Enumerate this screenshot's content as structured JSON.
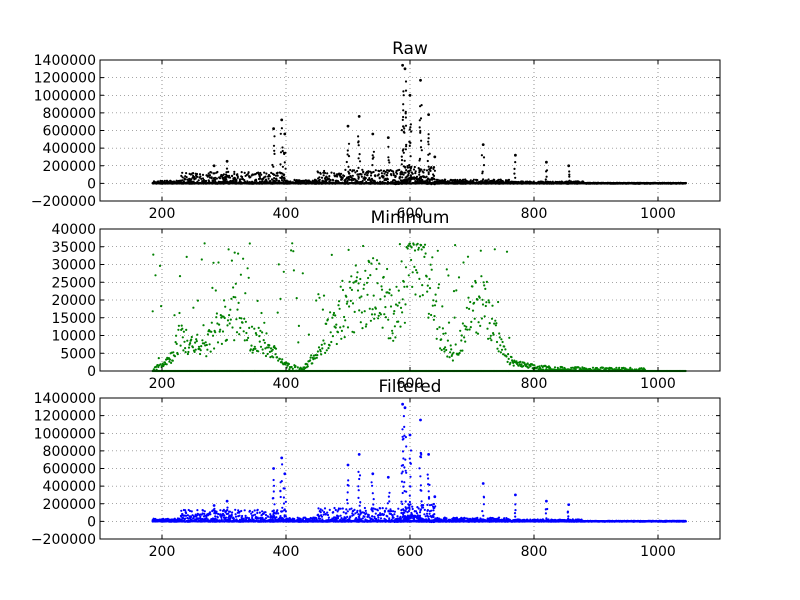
{
  "chart_data": [
    {
      "type": "scatter",
      "title": "Raw",
      "color": "#000000",
      "xlim": [
        100,
        1100
      ],
      "ylim": [
        -200000,
        1400000
      ],
      "xticks": [
        200,
        400,
        600,
        800,
        1000
      ],
      "yticks": [
        -200000,
        0,
        200000,
        400000,
        600000,
        800000,
        1000000,
        1200000,
        1400000
      ],
      "xtick_labels": [
        "200",
        "400",
        "600",
        "800",
        "1000"
      ],
      "ytick_labels": [
        "−200000",
        "0",
        "200000",
        "400000",
        "600000",
        "800000",
        "1000000",
        "1200000",
        "1400000"
      ],
      "grid": true,
      "x_data_range": [
        185,
        1045
      ],
      "peaks": [
        {
          "x": 284,
          "y": 200000
        },
        {
          "x": 305,
          "y": 250000
        },
        {
          "x": 380,
          "y": 620000
        },
        {
          "x": 393,
          "y": 720000
        },
        {
          "x": 398,
          "y": 560000
        },
        {
          "x": 500,
          "y": 650000
        },
        {
          "x": 518,
          "y": 760000
        },
        {
          "x": 540,
          "y": 560000
        },
        {
          "x": 565,
          "y": 520000
        },
        {
          "x": 588,
          "y": 1340000
        },
        {
          "x": 592,
          "y": 1300000
        },
        {
          "x": 600,
          "y": 1000000
        },
        {
          "x": 617,
          "y": 1170000
        },
        {
          "x": 630,
          "y": 780000
        },
        {
          "x": 640,
          "y": 300000
        },
        {
          "x": 718,
          "y": 440000
        },
        {
          "x": 770,
          "y": 320000
        },
        {
          "x": 820,
          "y": 240000
        },
        {
          "x": 856,
          "y": 200000
        }
      ]
    },
    {
      "type": "scatter",
      "title": "Minimum",
      "color": "#008000",
      "xlim": [
        100,
        1100
      ],
      "ylim": [
        0,
        40000
      ],
      "xticks": [
        200,
        400,
        600,
        800,
        1000
      ],
      "yticks": [
        0,
        5000,
        10000,
        15000,
        20000,
        25000,
        30000,
        35000,
        40000
      ],
      "xtick_labels": [
        "200",
        "400",
        "600",
        "800",
        "1000"
      ],
      "ytick_labels": [
        "0",
        "5000",
        "10000",
        "15000",
        "20000",
        "25000",
        "30000",
        "35000",
        "40000"
      ],
      "grid": true,
      "x_data_range": [
        185,
        1045
      ],
      "y_cap": 36000,
      "trend": [
        [
          185,
          0
        ],
        [
          200,
          2000
        ],
        [
          215,
          4000
        ],
        [
          230,
          10000
        ],
        [
          245,
          7000
        ],
        [
          260,
          6000
        ],
        [
          275,
          8000
        ],
        [
          290,
          12000
        ],
        [
          305,
          14000
        ],
        [
          320,
          15000
        ],
        [
          335,
          10000
        ],
        [
          350,
          9000
        ],
        [
          365,
          8000
        ],
        [
          380,
          6000
        ],
        [
          395,
          2000
        ],
        [
          410,
          1000
        ],
        [
          425,
          500
        ],
        [
          440,
          3000
        ],
        [
          455,
          5000
        ],
        [
          470,
          12000
        ],
        [
          485,
          14000
        ],
        [
          500,
          18000
        ],
        [
          515,
          20000
        ],
        [
          530,
          22000
        ],
        [
          545,
          24000
        ],
        [
          560,
          18000
        ],
        [
          575,
          14000
        ],
        [
          590,
          22000
        ],
        [
          600,
          36000
        ],
        [
          610,
          36000
        ],
        [
          625,
          28000
        ],
        [
          640,
          16000
        ],
        [
          655,
          8000
        ],
        [
          670,
          5000
        ],
        [
          685,
          10000
        ],
        [
          700,
          17000
        ],
        [
          715,
          20000
        ],
        [
          730,
          15000
        ],
        [
          745,
          7000
        ],
        [
          760,
          3000
        ],
        [
          775,
          2000
        ],
        [
          800,
          1000
        ],
        [
          830,
          500
        ],
        [
          870,
          300
        ],
        [
          950,
          100
        ],
        [
          1045,
          0
        ]
      ]
    },
    {
      "type": "scatter",
      "title": "Filtered",
      "color": "#0000ff",
      "xlim": [
        100,
        1100
      ],
      "ylim": [
        -200000,
        1400000
      ],
      "xticks": [
        200,
        400,
        600,
        800,
        1000
      ],
      "yticks": [
        -200000,
        0,
        200000,
        400000,
        600000,
        800000,
        1000000,
        1200000,
        1400000
      ],
      "xtick_labels": [
        "200",
        "400",
        "600",
        "800",
        "1000"
      ],
      "ytick_labels": [
        "−200000",
        "0",
        "200000",
        "400000",
        "600000",
        "800000",
        "1000000",
        "1200000",
        "1400000"
      ],
      "grid": true,
      "x_data_range": [
        185,
        1045
      ],
      "peaks": [
        {
          "x": 284,
          "y": 180000
        },
        {
          "x": 305,
          "y": 230000
        },
        {
          "x": 380,
          "y": 600000
        },
        {
          "x": 393,
          "y": 720000
        },
        {
          "x": 398,
          "y": 540000
        },
        {
          "x": 500,
          "y": 640000
        },
        {
          "x": 518,
          "y": 760000
        },
        {
          "x": 540,
          "y": 540000
        },
        {
          "x": 565,
          "y": 500000
        },
        {
          "x": 588,
          "y": 1330000
        },
        {
          "x": 592,
          "y": 1290000
        },
        {
          "x": 600,
          "y": 980000
        },
        {
          "x": 617,
          "y": 1150000
        },
        {
          "x": 630,
          "y": 760000
        },
        {
          "x": 640,
          "y": 280000
        },
        {
          "x": 718,
          "y": 430000
        },
        {
          "x": 770,
          "y": 300000
        },
        {
          "x": 820,
          "y": 230000
        },
        {
          "x": 856,
          "y": 190000
        }
      ]
    }
  ]
}
